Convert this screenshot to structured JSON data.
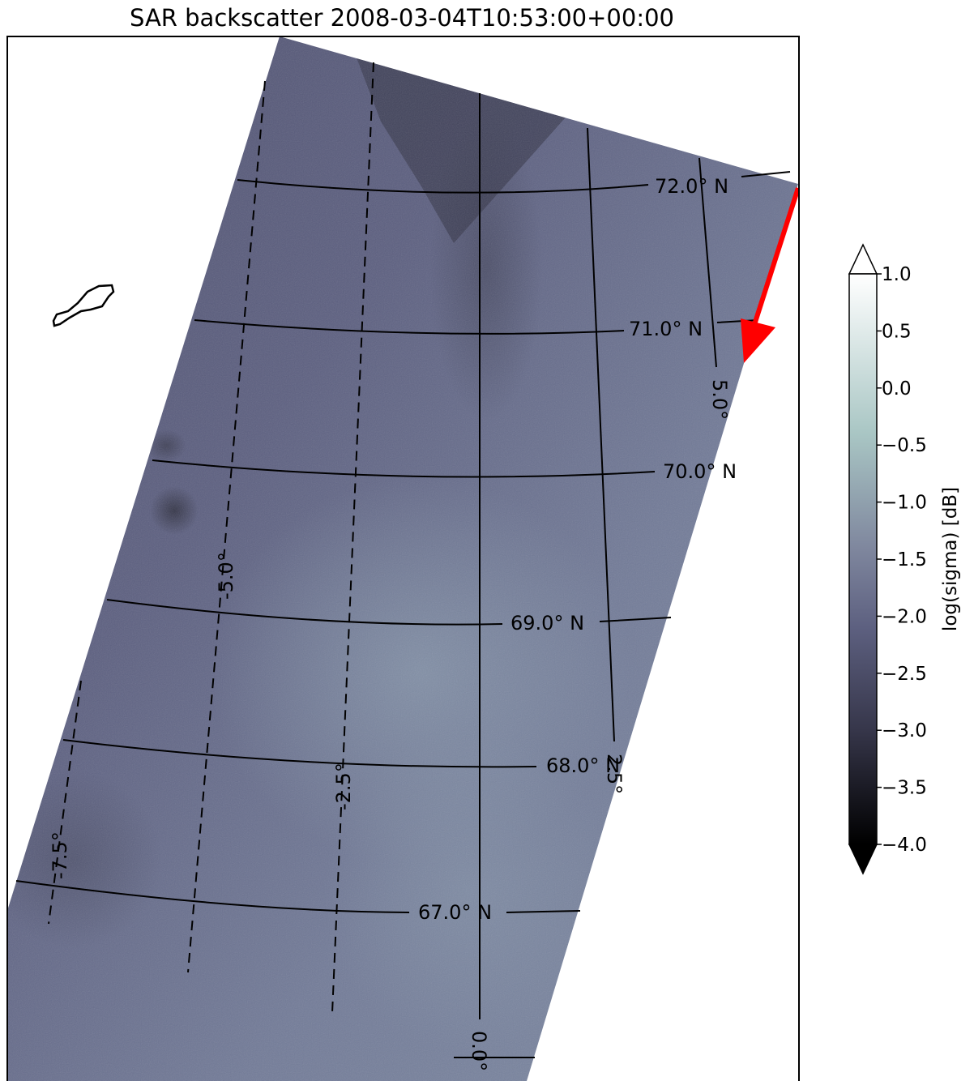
{
  "title": "SAR backscatter 2008-03-04T10:53:00+00:00",
  "map": {
    "latitude_labels": [
      "72.0° N",
      "71.0° N",
      "70.0° N",
      "69.0° N",
      "68.0° N",
      "67.0° N"
    ],
    "longitude_labels": [
      "5.0°",
      "2.5°",
      "0.0°",
      "-2.5°",
      "-5.0°",
      "-7.5°"
    ],
    "colors": {
      "swath": "#5b5e7f",
      "swath_dark": "#3e3f55",
      "swath_light": "#7b8aa1",
      "arrow": "#ff0000"
    }
  },
  "colorbar": {
    "label": "log(sigma) [dB]",
    "ticks": [
      "1.0",
      "0.5",
      "0.0",
      "−0.5",
      "−1.0",
      "−1.5",
      "−2.0",
      "−2.5",
      "−3.0",
      "−3.5",
      "−4.0"
    ],
    "extend": "both",
    "colors": [
      "#ffffff",
      "#a9c6c4",
      "#6b7490",
      "#3f3f58",
      "#000000"
    ]
  }
}
